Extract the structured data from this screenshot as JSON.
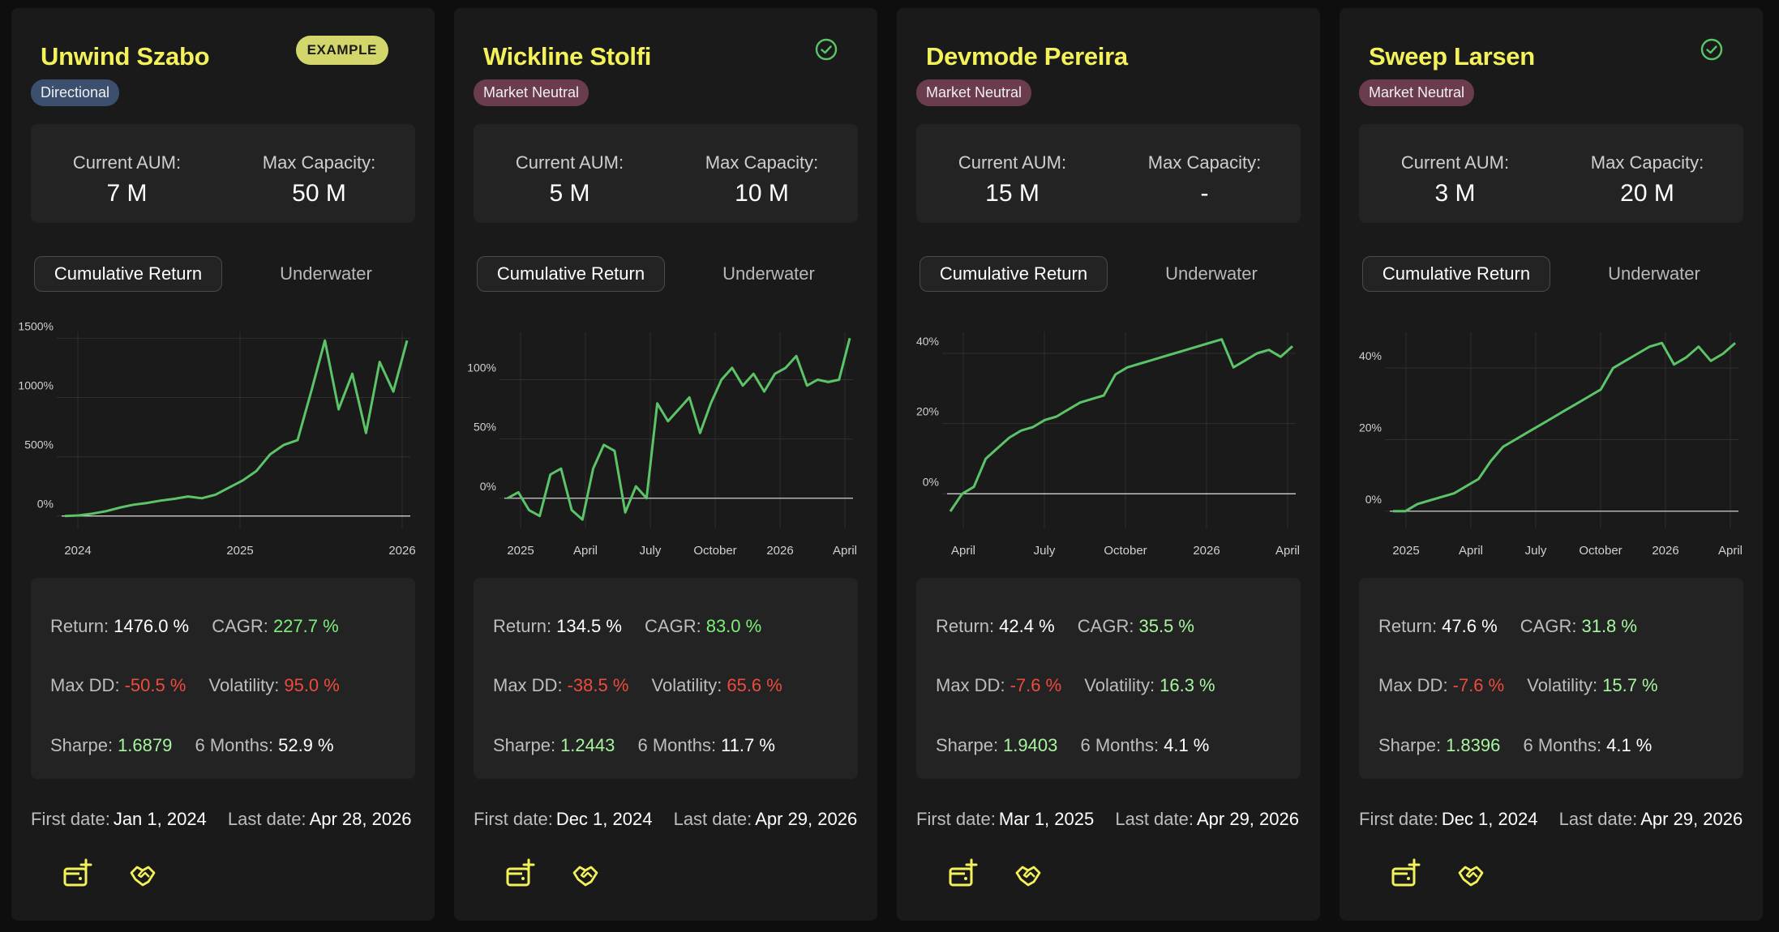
{
  "colors": {
    "accent": "#f4f25a",
    "line": "#5cc468",
    "positive": "#a8f5a0",
    "negative": "#ee4b3e"
  },
  "labels": {
    "current_aum": "Current AUM:",
    "max_capacity": "Max Capacity:",
    "tab_cumulative": "Cumulative Return",
    "tab_underwater": "Underwater",
    "return": "Return:",
    "cagr": "CAGR:",
    "max_dd": "Max DD:",
    "volatility": "Volatility:",
    "sharpe": "Sharpe:",
    "six_months": "6 Months:",
    "first_date": "First date:",
    "last_date": "Last date:"
  },
  "cards": [
    {
      "title": "Unwind Szabo",
      "example_badge": "EXAMPLE",
      "tag": "Directional",
      "aum": "7 M",
      "capacity": "50 M",
      "stats": {
        "return": "1476.0 %",
        "cagr": "227.7 %",
        "max_dd": "-50.5 %",
        "volatility": "95.0 %",
        "sharpe": "1.6879",
        "six_months": "52.9 %"
      },
      "first_date": "Jan 1, 2024",
      "last_date": "Apr 28, 2026",
      "chart_data": {
        "type": "line",
        "series": [
          {
            "values": [
              0,
              5,
              20,
              40,
              70,
              95,
              110,
              130,
              145,
              165,
              150,
              180,
              240,
              300,
              380,
              520,
              600,
              640,
              1050,
              1480,
              900,
              1200,
              700,
              1300,
              1050,
              1480
            ]
          }
        ],
        "x_ticks": [
          "2024",
          "2025",
          "2026"
        ],
        "y_ticks": [
          "0%",
          "500%",
          "1000%",
          "1500%"
        ],
        "ylim": [
          -50,
          1550
        ],
        "grid": true
      },
      "icons": [
        "add-wallet-icon",
        "handshake-icon"
      ]
    },
    {
      "title": "Wickline Stolfi",
      "tag": "Market Neutral",
      "verified_icon": "check-circle-icon",
      "aum": "5 M",
      "capacity": "10 M",
      "stats": {
        "return": "134.5 %",
        "cagr": "83.0 %",
        "max_dd": "-38.5 %",
        "volatility": "65.6 %",
        "sharpe": "1.2443",
        "six_months": "11.7 %"
      },
      "first_date": "Dec 1, 2024",
      "last_date": "Apr 29, 2026",
      "chart_data": {
        "type": "line",
        "series": [
          {
            "values": [
              0,
              5,
              -10,
              -15,
              20,
              25,
              -10,
              -18,
              25,
              45,
              40,
              -12,
              10,
              0,
              80,
              65,
              75,
              85,
              55,
              80,
              100,
              110,
              95,
              105,
              90,
              105,
              110,
              120,
              95,
              100,
              98,
              100,
              135
            ]
          }
        ],
        "x_ticks": [
          "2025",
          "April",
          "July",
          "October",
          "2026",
          "April"
        ],
        "y_ticks": [
          "0%",
          "50%",
          "100%"
        ],
        "ylim": [
          -20,
          140
        ],
        "grid": true
      },
      "icons": [
        "add-wallet-icon",
        "handshake-icon"
      ]
    },
    {
      "title": "Devmode Pereira",
      "tag": "Market Neutral",
      "aum": "15 M",
      "capacity": "-",
      "stats": {
        "return": "42.4 %",
        "cagr": "35.5 %",
        "max_dd": "-7.6 %",
        "volatility": "16.3 %",
        "sharpe": "1.9403",
        "six_months": "4.1 %"
      },
      "first_date": "Mar 1, 2025",
      "last_date": "Apr 29, 2026",
      "chart_data": {
        "type": "line",
        "series": [
          {
            "values": [
              -5,
              0,
              2,
              10,
              13,
              16,
              18,
              19,
              21,
              22,
              24,
              26,
              27,
              28,
              34,
              36,
              37,
              38,
              39,
              40,
              41,
              42,
              43,
              44,
              36,
              38,
              40,
              41,
              39,
              42
            ]
          }
        ],
        "x_ticks": [
          "April",
          "July",
          "October",
          "2026",
          "April"
        ],
        "y_ticks": [
          "0%",
          "20%",
          "40%"
        ],
        "ylim": [
          -8,
          46
        ],
        "grid": true
      },
      "icons": [
        "add-wallet-icon",
        "handshake-icon"
      ]
    },
    {
      "title": "Sweep Larsen",
      "tag": "Market Neutral",
      "verified_icon": "check-circle-icon",
      "aum": "3 M",
      "capacity": "20 M",
      "stats": {
        "return": "47.6 %",
        "cagr": "31.8 %",
        "max_dd": "-7.6 %",
        "volatility": "15.7 %",
        "sharpe": "1.8396",
        "six_months": "4.1 %"
      },
      "first_date": "Dec 1, 2024",
      "last_date": "Apr 29, 2026",
      "chart_data": {
        "type": "line",
        "series": [
          {
            "values": [
              0,
              0,
              2,
              3,
              4,
              5,
              7,
              9,
              14,
              18,
              20,
              22,
              24,
              26,
              28,
              30,
              32,
              34,
              40,
              42,
              44,
              46,
              47,
              41,
              43,
              46,
              42,
              44,
              47
            ]
          }
        ],
        "x_ticks": [
          "2025",
          "April",
          "July",
          "October",
          "2026",
          "April"
        ],
        "y_ticks": [
          "0%",
          "20%",
          "40%"
        ],
        "ylim": [
          -3,
          50
        ],
        "grid": true
      },
      "icons": [
        "add-wallet-icon",
        "handshake-icon"
      ]
    }
  ]
}
